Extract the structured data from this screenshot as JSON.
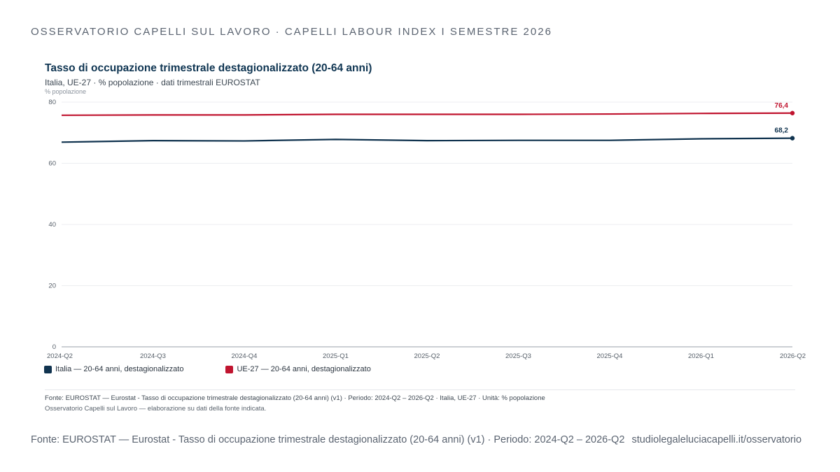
{
  "header": {
    "title": "OSSERVATORIO CAPELLI SUL LAVORO · CAPELLI LABOUR INDEX I SEMESTRE 2026"
  },
  "chart_data": {
    "type": "line",
    "title": "Tasso di occupazione trimestrale destagionalizzato (20-64 anni)",
    "subtitle": "Italia, UE-27 · % popolazione · dati trimestrali EUROSTAT",
    "ylabel": "% popolazione",
    "xlabel": "",
    "ylim": [
      0,
      80
    ],
    "yticks": [
      "0",
      "20",
      "40",
      "60",
      "80"
    ],
    "categories": [
      "2024-Q2",
      "2024-Q3",
      "2024-Q4",
      "2025-Q1",
      "2025-Q2",
      "2025-Q3",
      "2025-Q4",
      "2026-Q1",
      "2026-Q2"
    ],
    "grid": true,
    "legend_position": "bottom-left",
    "series": [
      {
        "name": "Italia — 20-64 anni, destagionalizzato",
        "color": "#10334f",
        "values": [
          66.9,
          67.4,
          67.3,
          67.8,
          67.4,
          67.5,
          67.5,
          68.0,
          68.2
        ],
        "end_label": "68,2"
      },
      {
        "name": "UE-27 — 20-64 anni, destagionalizzato",
        "color": "#c0142f",
        "values": [
          75.7,
          75.8,
          75.8,
          76.0,
          76.0,
          76.0,
          76.1,
          76.3,
          76.4
        ],
        "end_label": "76,4"
      }
    ]
  },
  "source": {
    "line1": "Fonte: EUROSTAT — Eurostat - Tasso di occupazione trimestrale destagionalizzato (20-64 anni) (v1) · Periodo: 2024-Q2 – 2026-Q2 · Italia, UE-27 · Unità: % popolazione",
    "line2": "Osservatorio Capelli sul Lavoro — elaborazione su dati della fonte indicata."
  },
  "footer": {
    "text": "Fonte: EUROSTAT — Eurostat - Tasso di occupazione trimestrale destagionalizzato (20-64 anni) (v1) · Periodo: 2024-Q2 – 2026-Q2",
    "url": "studiolegaleluciacapelli.it/osservatorio"
  }
}
